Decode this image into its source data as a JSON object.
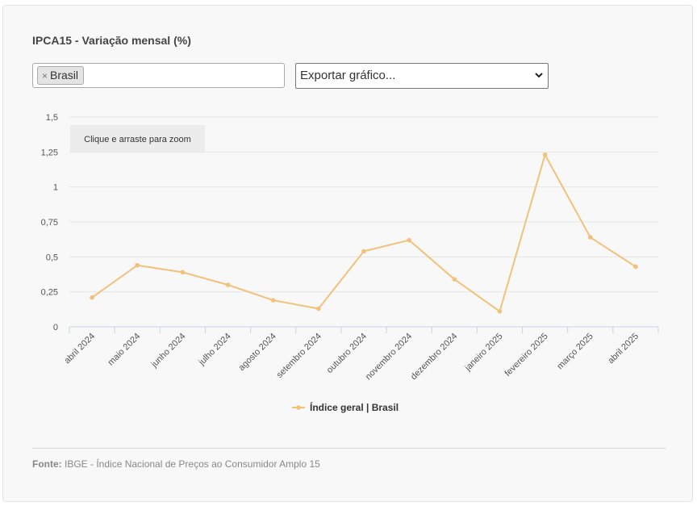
{
  "panel": {
    "title": "IPCA15 - Variação mensal (%)"
  },
  "filter": {
    "tags": [
      {
        "label": "Brasil",
        "remove_symbol": "×"
      }
    ]
  },
  "export_select": {
    "selected": "Exportar gráfico..."
  },
  "chart": {
    "zoom_hint": "Clique e arraste para zoom"
  },
  "chart_data": {
    "type": "line",
    "title": "",
    "xlabel": "",
    "ylabel": "",
    "categories": [
      "abril 2024",
      "maio 2024",
      "junho 2024",
      "julho 2024",
      "agosto 2024",
      "setembro 2024",
      "outubro 2024",
      "novembro 2024",
      "dezembro 2024",
      "janeiro 2025",
      "fevereiro 2025",
      "março 2025",
      "abril 2025"
    ],
    "series": [
      {
        "name": "Índice geral | Brasil",
        "color": "#f0c27b",
        "values": [
          0.21,
          0.44,
          0.39,
          0.3,
          0.19,
          0.13,
          0.54,
          0.62,
          0.34,
          0.11,
          1.23,
          0.64,
          0.43
        ]
      }
    ],
    "ylim": [
      0,
      1.5
    ],
    "yticks": [
      "0",
      "0,25",
      "0,5",
      "0,75",
      "1",
      "1,25",
      "1,5"
    ],
    "ytick_values": [
      0,
      0.25,
      0.5,
      0.75,
      1,
      1.25,
      1.5
    ],
    "grid": true,
    "legend_position": "bottom"
  },
  "footer": {
    "source_label": "Fonte:",
    "source_text": "IBGE - Índice Nacional de Preços ao Consumidor Amplo 15"
  }
}
